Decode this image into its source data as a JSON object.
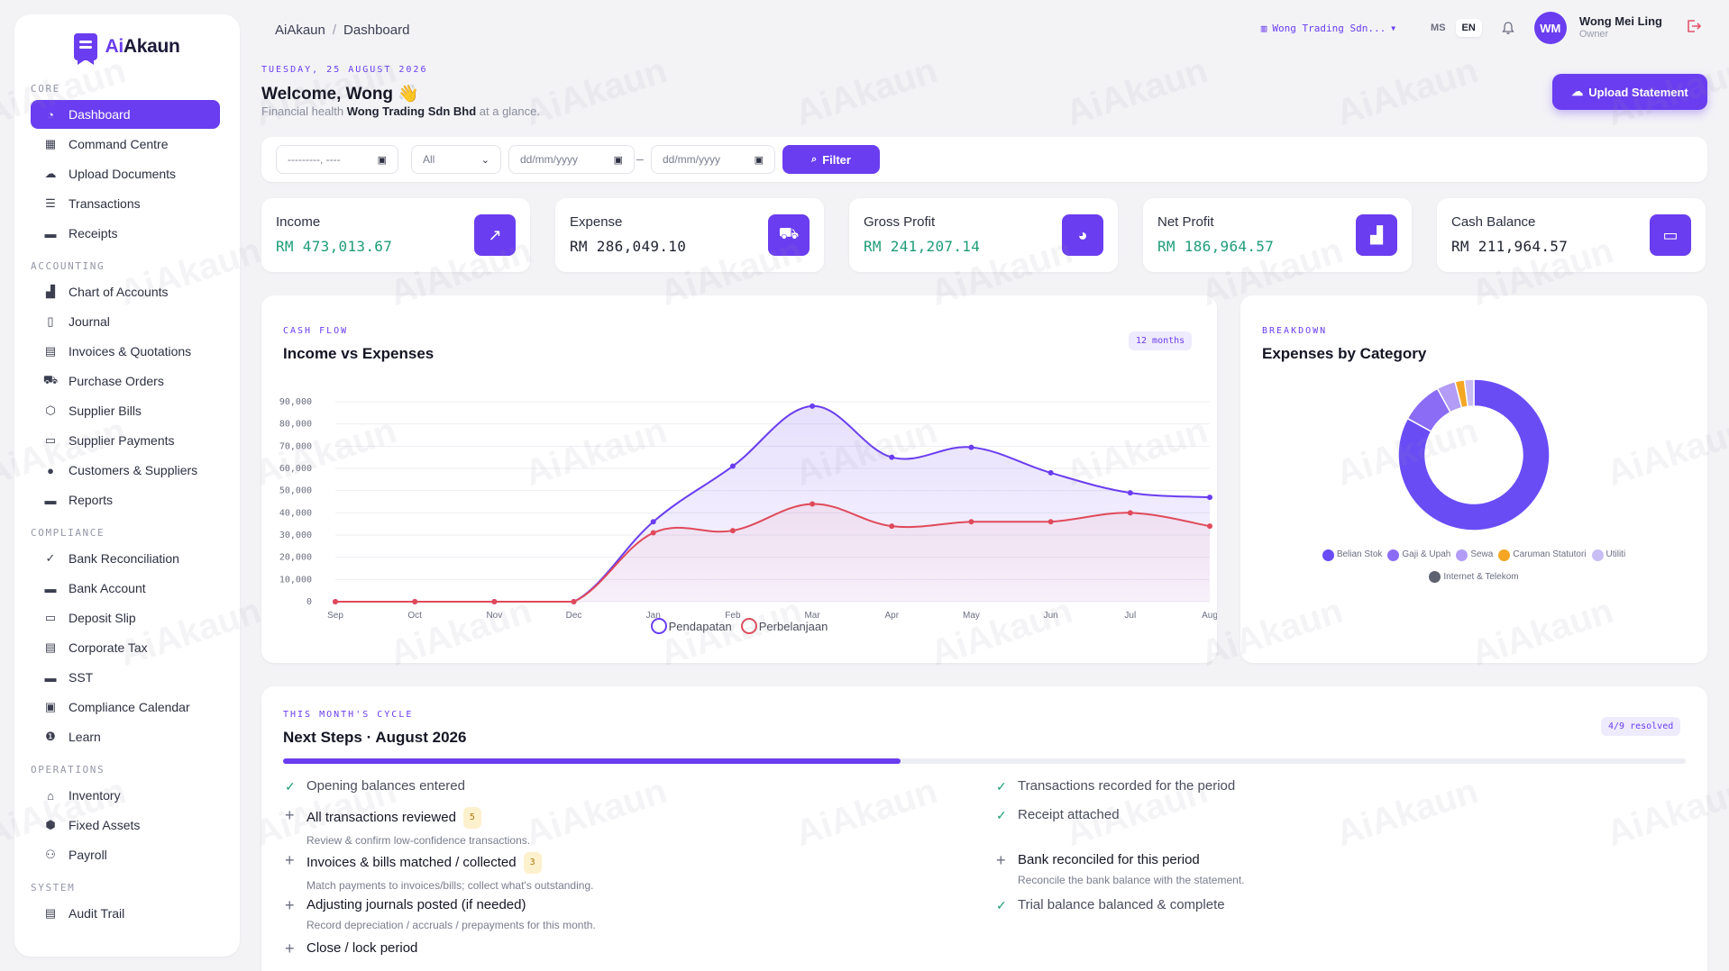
{
  "brand": {
    "prefix": "Ai",
    "suffix": "Akaun"
  },
  "sidebar": {
    "sections": [
      {
        "title": "CORE",
        "items": [
          {
            "label": "Dashboard",
            "icon": "dashboard-icon",
            "active": true
          },
          {
            "label": "Command Centre",
            "icon": "grid-icon"
          },
          {
            "label": "Upload Documents",
            "icon": "cloud-upload-icon"
          },
          {
            "label": "Transactions",
            "icon": "list-icon"
          },
          {
            "label": "Receipts",
            "icon": "receipt-icon"
          }
        ]
      },
      {
        "title": "ACCOUNTING",
        "items": [
          {
            "label": "Chart of Accounts",
            "icon": "bar-chart-icon"
          },
          {
            "label": "Journal",
            "icon": "journal-icon"
          },
          {
            "label": "Invoices & Quotations",
            "icon": "document-icon"
          },
          {
            "label": "Purchase Orders",
            "icon": "cart-icon"
          },
          {
            "label": "Supplier Bills",
            "icon": "box-icon"
          },
          {
            "label": "Supplier Payments",
            "icon": "wallet-icon"
          },
          {
            "label": "Customers & Suppliers",
            "icon": "user-icon"
          },
          {
            "label": "Reports",
            "icon": "report-icon"
          }
        ]
      },
      {
        "title": "COMPLIANCE",
        "items": [
          {
            "label": "Bank Reconciliation",
            "icon": "check-icon"
          },
          {
            "label": "Bank Account",
            "icon": "card-icon"
          },
          {
            "label": "Deposit Slip",
            "icon": "deposit-icon"
          },
          {
            "label": "Corporate Tax",
            "icon": "tax-doc-icon"
          },
          {
            "label": "SST",
            "icon": "sst-icon"
          },
          {
            "label": "Compliance Calendar",
            "icon": "calendar-icon"
          },
          {
            "label": "Learn",
            "icon": "info-icon"
          }
        ]
      },
      {
        "title": "OPERATIONS",
        "items": [
          {
            "label": "Inventory",
            "icon": "warehouse-icon"
          },
          {
            "label": "Fixed Assets",
            "icon": "cube-icon"
          },
          {
            "label": "Payroll",
            "icon": "users-icon"
          }
        ]
      },
      {
        "title": "SYSTEM",
        "items": [
          {
            "label": "Audit Trail",
            "icon": "audit-icon"
          }
        ]
      }
    ]
  },
  "topbar": {
    "breadcrumb_root": "AiAkaun",
    "breadcrumb_current": "Dashboard",
    "company": "Wong Trading Sdn...",
    "lang_ms": "MS",
    "lang_en": "EN",
    "avatar_initials": "WM",
    "user_name": "Wong Mei Ling",
    "user_role": "Owner"
  },
  "header": {
    "date": "TUESDAY, 25 AUGUST 2026",
    "welcome": "Welcome, Wong 👋",
    "subtitle_prefix": "Financial health",
    "subtitle_company": "Wong Trading Sdn Bhd",
    "subtitle_suffix": "at a glance.",
    "upload_label": "Upload Statement"
  },
  "filters": {
    "month_placeholder": "---------, ----",
    "type_value": "All",
    "from_placeholder": "dd/mm/yyyy",
    "dash": "–",
    "to_placeholder": "dd/mm/yyyy",
    "filter_label": "Filter"
  },
  "kpis": [
    {
      "label": "Income",
      "value": "RM 473,013.67",
      "color": "#1f9d78",
      "icon": "trend-icon"
    },
    {
      "label": "Expense",
      "value": "RM 286,049.10",
      "color": "#1f2330",
      "icon": "cart-icon"
    },
    {
      "label": "Gross Profit",
      "value": "RM 241,207.14",
      "color": "#1f9d78",
      "icon": "pie-icon"
    },
    {
      "label": "Net Profit",
      "value": "RM 186,964.57",
      "color": "#1f9d78",
      "icon": "bar-chart-icon"
    },
    {
      "label": "Cash Balance",
      "value": "RM 211,964.57",
      "color": "#1f2330",
      "icon": "wallet-icon"
    }
  ],
  "cashflow": {
    "kicker": "CASH FLOW",
    "title": "Income vs Expenses",
    "range_pill": "12 months"
  },
  "chart_data": [
    {
      "type": "area",
      "title": "Income vs Expenses",
      "categories": [
        "Sep",
        "Oct",
        "Nov",
        "Dec",
        "Jan",
        "Feb",
        "Mar",
        "Apr",
        "May",
        "Jun",
        "Jul",
        "Aug"
      ],
      "yticks": [
        "0",
        "10,000",
        "20,000",
        "30,000",
        "40,000",
        "50,000",
        "60,000",
        "70,000",
        "80,000",
        "90,000"
      ],
      "ylim": [
        0,
        90000
      ],
      "grid": true,
      "legend": "bottom",
      "series": [
        {
          "name": "Pendapatan",
          "color": "#6a3df0",
          "values": [
            0,
            0,
            0,
            0,
            36000,
            61000,
            88000,
            65000,
            69500,
            58000,
            49000,
            47000
          ]
        },
        {
          "name": "Perbelanjaan",
          "color": "#e04a5a",
          "values": [
            0,
            0,
            0,
            0,
            31000,
            32000,
            44000,
            34000,
            36000,
            36000,
            40000,
            34000
          ]
        }
      ]
    },
    {
      "type": "pie",
      "title": "Expenses by Category",
      "donut": true,
      "labels": [
        "Belian Stok",
        "Gaji & Upah",
        "Sewa",
        "Caruman Statutori",
        "Utiliti",
        "Internet & Telekom"
      ],
      "colors": [
        "#6a4cf5",
        "#8b6cf5",
        "#b39cf6",
        "#f5a623",
        "#c9bdf5",
        "#5d6170"
      ],
      "values": [
        83,
        9,
        4,
        2,
        2,
        0
      ]
    }
  ],
  "breakdown": {
    "kicker": "BREAKDOWN",
    "title": "Expenses by Category"
  },
  "steps": {
    "kicker": "THIS MONTH'S CYCLE",
    "title": "Next Steps · August 2026",
    "resolved": "4/9 resolved",
    "progress": 0.44,
    "items": [
      {
        "title": "Opening balances entered",
        "done": true
      },
      {
        "title": "All transactions reviewed",
        "done": false,
        "badge": "5",
        "desc": "Review & confirm low-confidence transactions."
      },
      {
        "title": "Invoices & bills matched / collected",
        "done": false,
        "badge": "3",
        "desc": "Match payments to invoices/bills; collect what's outstanding."
      },
      {
        "title": "Adjusting journals posted (if needed)",
        "done": false,
        "desc": "Record depreciation / accruals / prepayments for this month."
      },
      {
        "title": "Close / lock period",
        "done": false
      },
      {
        "title": "Transactions recorded for the period",
        "done": true
      },
      {
        "title": "Receipt attached",
        "done": true
      },
      {
        "title": "Bank reconciled for this period",
        "done": false,
        "desc": "Reconcile the bank balance with the statement."
      },
      {
        "title": "Trial balance balanced & complete",
        "done": true
      }
    ]
  },
  "watermark": "AiAkaun"
}
